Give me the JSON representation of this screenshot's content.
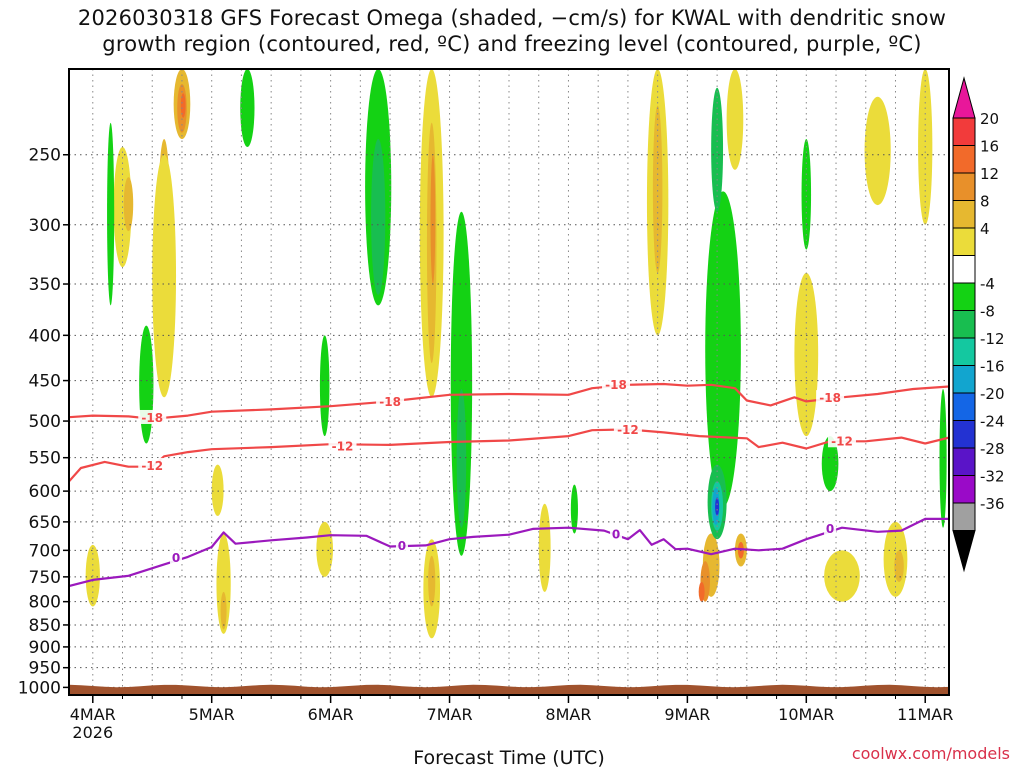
{
  "title_line1": "2026030318 GFS Forecast Omega (shaded, −cm/s) for KWAL with dendritic snow",
  "title_line2": "growth region (contoured, red, ºC) and freezing level (contoured, purple, ºC)",
  "credit": "coolwx.com/models",
  "chart_data": {
    "type": "heatmap",
    "xlabel": "Forecast Time (UTC)",
    "x_ticks": [
      "4MAR",
      "5MAR",
      "6MAR",
      "7MAR",
      "8MAR",
      "9MAR",
      "10MAR",
      "11MAR"
    ],
    "x_tick_year": "2026",
    "x_range_days": [
      -0.2,
      7.2
    ],
    "y_ticks": [
      250,
      300,
      350,
      400,
      450,
      500,
      550,
      600,
      650,
      700,
      750,
      800,
      850,
      900,
      950,
      1000
    ],
    "y_range_hpa": [
      200,
      1020
    ],
    "y_scale": "log",
    "grid": true,
    "colorbar": {
      "labels": [
        "20",
        "16",
        "12",
        "8",
        "4",
        "-4",
        "-8",
        "-12",
        "-16",
        "-20",
        "-24",
        "-28",
        "-32",
        "-36"
      ],
      "colors": [
        "#e8179a",
        "#f23b3b",
        "#f26a2a",
        "#e8902a",
        "#e6b830",
        "#ebdc3a",
        "#ffffff",
        "#14d214",
        "#18be50",
        "#14c8a0",
        "#12a5cf",
        "#1466e6",
        "#2332d2",
        "#5a14c8",
        "#9a0ac8",
        "#a0a0a0",
        "#000000"
      ]
    },
    "contours": [
      {
        "label": "-18",
        "color": "#f04848",
        "points": [
          [
            -0.2,
            495
          ],
          [
            0,
            493
          ],
          [
            0.3,
            494
          ],
          [
            0.5,
            497
          ],
          [
            0.8,
            493
          ],
          [
            1,
            488
          ],
          [
            1.5,
            485
          ],
          [
            2,
            481
          ],
          [
            2.5,
            475
          ],
          [
            3,
            467
          ],
          [
            3.5,
            466
          ],
          [
            4,
            467
          ],
          [
            4.2,
            459
          ],
          [
            4.5,
            455
          ],
          [
            4.8,
            454
          ],
          [
            5,
            456
          ],
          [
            5.2,
            455
          ],
          [
            5.4,
            459
          ],
          [
            5.5,
            474
          ],
          [
            5.7,
            480
          ],
          [
            5.9,
            470
          ],
          [
            6.0,
            475
          ],
          [
            6.3,
            470
          ],
          [
            6.6,
            466
          ],
          [
            6.9,
            460
          ],
          [
            7.2,
            457
          ]
        ],
        "label_positions": [
          [
            0.5,
            496
          ],
          [
            2.5,
            476
          ],
          [
            4.4,
            455
          ],
          [
            6.2,
            471
          ]
        ]
      },
      {
        "label": "-12",
        "color": "#f04848",
        "points": [
          [
            -0.2,
            585
          ],
          [
            -0.1,
            565
          ],
          [
            0.1,
            556
          ],
          [
            0.3,
            563
          ],
          [
            0.5,
            563
          ],
          [
            0.6,
            548
          ],
          [
            0.8,
            542
          ],
          [
            1,
            538
          ],
          [
            1.5,
            535
          ],
          [
            2,
            531
          ],
          [
            2.5,
            532
          ],
          [
            3,
            528
          ],
          [
            3.5,
            526
          ],
          [
            4,
            520
          ],
          [
            4.2,
            512
          ],
          [
            4.5,
            511
          ],
          [
            4.8,
            515
          ],
          [
            5.1,
            520
          ],
          [
            5.5,
            523
          ],
          [
            5.6,
            535
          ],
          [
            5.8,
            529
          ],
          [
            6.0,
            537
          ],
          [
            6.2,
            527
          ],
          [
            6.5,
            527
          ],
          [
            6.8,
            522
          ],
          [
            7.0,
            530
          ],
          [
            7.2,
            522
          ]
        ],
        "label_positions": [
          [
            0.5,
            562
          ],
          [
            2.1,
            534
          ],
          [
            4.5,
            512
          ],
          [
            6.3,
            527
          ]
        ]
      },
      {
        "label": "0",
        "color": "#9b19bd",
        "points": [
          [
            -0.2,
            768
          ],
          [
            0,
            756
          ],
          [
            0.3,
            748
          ],
          [
            0.6,
            726
          ],
          [
            0.8,
            712
          ],
          [
            1,
            694
          ],
          [
            1.1,
            668
          ],
          [
            1.2,
            688
          ],
          [
            1.5,
            682
          ],
          [
            1.8,
            677
          ],
          [
            2,
            673
          ],
          [
            2.3,
            674
          ],
          [
            2.5,
            693
          ],
          [
            2.8,
            691
          ],
          [
            3.0,
            680
          ],
          [
            3.2,
            676
          ],
          [
            3.5,
            672
          ],
          [
            3.7,
            662
          ],
          [
            4,
            660
          ],
          [
            4.3,
            665
          ],
          [
            4.5,
            680
          ],
          [
            4.6,
            664
          ],
          [
            4.7,
            690
          ],
          [
            4.8,
            680
          ],
          [
            4.9,
            698
          ],
          [
            5.0,
            697
          ],
          [
            5.2,
            707
          ],
          [
            5.4,
            697
          ],
          [
            5.6,
            700
          ],
          [
            5.8,
            697
          ],
          [
            6.0,
            680
          ],
          [
            6.3,
            660
          ],
          [
            6.6,
            667
          ],
          [
            6.8,
            665
          ],
          [
            7.0,
            645
          ],
          [
            7.2,
            645
          ]
        ],
        "label_positions": [
          [
            0.7,
            714
          ],
          [
            2.6,
            692
          ],
          [
            4.4,
            672
          ],
          [
            6.2,
            662
          ]
        ]
      }
    ],
    "shaded_regions": [
      {
        "class": "8",
        "center": [
          0.75,
          220
        ],
        "size": [
          0.14,
          40
        ]
      },
      {
        "class": "12",
        "center": [
          0.75,
          222
        ],
        "size": [
          0.08,
          28
        ]
      },
      {
        "class": "16",
        "center": [
          0.76,
          220
        ],
        "size": [
          0.04,
          14
        ]
      },
      {
        "class": "8",
        "center": [
          0.6,
          300
        ],
        "size": [
          0.1,
          120
        ]
      },
      {
        "class": "4",
        "center": [
          0.6,
          360
        ],
        "size": [
          0.2,
          220
        ]
      },
      {
        "class": "4",
        "center": [
          0.25,
          290
        ],
        "size": [
          0.15,
          90
        ]
      },
      {
        "class": "8",
        "center": [
          0.3,
          285
        ],
        "size": [
          0.08,
          40
        ]
      },
      {
        "class": "4",
        "center": [
          2.85,
          330
        ],
        "size": [
          0.2,
          280
        ]
      },
      {
        "class": "8",
        "center": [
          2.85,
          330
        ],
        "size": [
          0.08,
          200
        ]
      },
      {
        "class": "12",
        "center": [
          2.86,
          300
        ],
        "size": [
          0.04,
          100
        ]
      },
      {
        "class": "4",
        "center": [
          4.75,
          300
        ],
        "size": [
          0.18,
          200
        ]
      },
      {
        "class": "8",
        "center": [
          4.75,
          280
        ],
        "size": [
          0.08,
          120
        ]
      },
      {
        "class": "4",
        "center": [
          5.4,
          230
        ],
        "size": [
          0.14,
          60
        ]
      },
      {
        "class": "4",
        "center": [
          6.0,
          430
        ],
        "size": [
          0.2,
          180
        ]
      },
      {
        "class": "4",
        "center": [
          6.6,
          250
        ],
        "size": [
          0.22,
          70
        ]
      },
      {
        "class": "4",
        "center": [
          7.0,
          250
        ],
        "size": [
          0.12,
          100
        ]
      },
      {
        "class": "8",
        "center": [
          5.2,
          730
        ],
        "size": [
          0.14,
          120
        ]
      },
      {
        "class": "12",
        "center": [
          5.15,
          760
        ],
        "size": [
          0.08,
          80
        ]
      },
      {
        "class": "16",
        "center": [
          5.12,
          780
        ],
        "size": [
          0.05,
          40
        ]
      },
      {
        "class": "8",
        "center": [
          5.45,
          700
        ],
        "size": [
          0.1,
          60
        ]
      },
      {
        "class": "16",
        "center": [
          5.45,
          700
        ],
        "size": [
          0.05,
          30
        ]
      },
      {
        "class": "4",
        "center": [
          1.1,
          770
        ],
        "size": [
          0.12,
          200
        ]
      },
      {
        "class": "8",
        "center": [
          1.1,
          820
        ],
        "size": [
          0.05,
          80
        ]
      },
      {
        "class": "4",
        "center": [
          1.05,
          600
        ],
        "size": [
          0.1,
          80
        ]
      },
      {
        "class": "4",
        "center": [
          1.95,
          700
        ],
        "size": [
          0.14,
          100
        ]
      },
      {
        "class": "4",
        "center": [
          2.85,
          780
        ],
        "size": [
          0.14,
          200
        ]
      },
      {
        "class": "8",
        "center": [
          2.85,
          760
        ],
        "size": [
          0.06,
          100
        ]
      },
      {
        "class": "4",
        "center": [
          6.3,
          750
        ],
        "size": [
          0.3,
          100
        ]
      },
      {
        "class": "4",
        "center": [
          6.75,
          720
        ],
        "size": [
          0.2,
          140
        ]
      },
      {
        "class": "8",
        "center": [
          6.78,
          730
        ],
        "size": [
          0.08,
          60
        ]
      },
      {
        "class": "4",
        "center": [
          0.0,
          750
        ],
        "size": [
          0.12,
          120
        ]
      },
      {
        "class": "4",
        "center": [
          3.8,
          700
        ],
        "size": [
          0.1,
          160
        ]
      },
      {
        "class": "-4",
        "center": [
          2.4,
          280
        ],
        "size": [
          0.22,
          180
        ]
      },
      {
        "class": "-8",
        "center": [
          2.4,
          300
        ],
        "size": [
          0.12,
          120
        ]
      },
      {
        "class": "-4",
        "center": [
          3.1,
          500
        ],
        "size": [
          0.18,
          420
        ]
      },
      {
        "class": "-8",
        "center": [
          3.1,
          560
        ],
        "size": [
          0.08,
          200
        ]
      },
      {
        "class": "-4",
        "center": [
          1.3,
          220
        ],
        "size": [
          0.12,
          50
        ]
      },
      {
        "class": "-4",
        "center": [
          5.3,
          450
        ],
        "size": [
          0.3,
          350
        ]
      },
      {
        "class": "-8",
        "center": [
          5.25,
          620
        ],
        "size": [
          0.16,
          120
        ]
      },
      {
        "class": "-12",
        "center": [
          5.25,
          625
        ],
        "size": [
          0.1,
          80
        ]
      },
      {
        "class": "-16",
        "center": [
          5.24,
          625
        ],
        "size": [
          0.06,
          60
        ]
      },
      {
        "class": "-24",
        "center": [
          5.25,
          625
        ],
        "size": [
          0.03,
          30
        ]
      },
      {
        "class": "-8",
        "center": [
          5.25,
          250
        ],
        "size": [
          0.1,
          80
        ]
      },
      {
        "class": "-4",
        "center": [
          6.0,
          280
        ],
        "size": [
          0.08,
          80
        ]
      },
      {
        "class": "-4",
        "center": [
          6.2,
          560
        ],
        "size": [
          0.14,
          80
        ]
      },
      {
        "class": "-4",
        "center": [
          0.45,
          460
        ],
        "size": [
          0.12,
          140
        ]
      },
      {
        "class": "-4",
        "center": [
          1.95,
          460
        ],
        "size": [
          0.08,
          120
        ]
      },
      {
        "class": "-4",
        "center": [
          0.15,
          300
        ],
        "size": [
          0.06,
          140
        ]
      },
      {
        "class": "-4",
        "center": [
          4.05,
          630
        ],
        "size": [
          0.06,
          80
        ]
      },
      {
        "class": "-4",
        "center": [
          7.15,
          560
        ],
        "size": [
          0.06,
          200
        ]
      }
    ],
    "ground_color": "#a0522d"
  }
}
